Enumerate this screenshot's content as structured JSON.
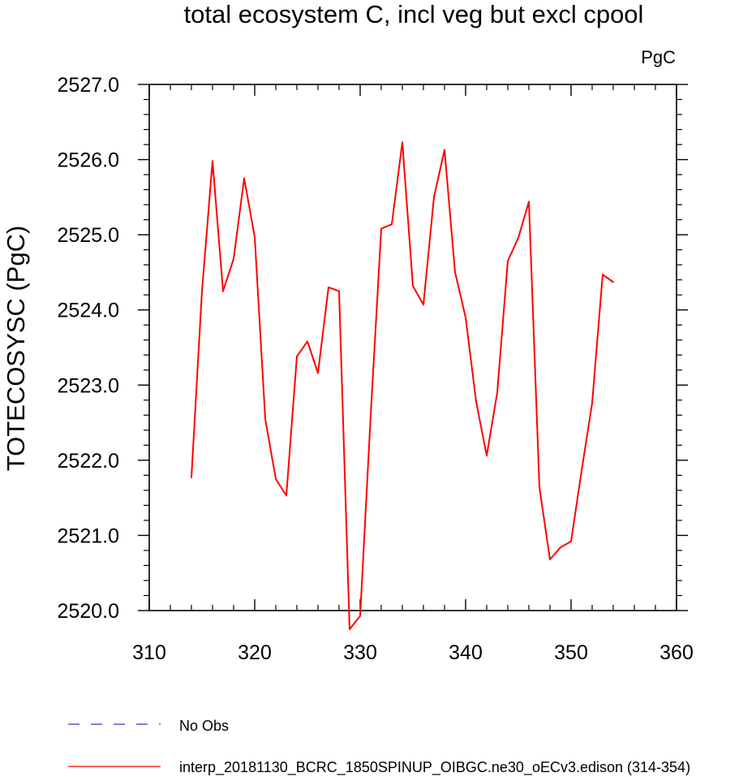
{
  "chart_data": {
    "type": "line",
    "title": "total ecosystem C, incl veg but excl cpool",
    "units_label": "PgC",
    "xlabel": "",
    "ylabel": "TOTECOSYSC  (PgC)",
    "xlim": [
      310,
      360
    ],
    "ylim": [
      2520,
      2527
    ],
    "xticks": [
      310,
      320,
      330,
      340,
      350,
      360
    ],
    "yticks": [
      2520,
      2521,
      2522,
      2523,
      2524,
      2525,
      2526,
      2527
    ],
    "xtick_labels": [
      "310",
      "320",
      "330",
      "340",
      "350",
      "360"
    ],
    "ytick_labels": [
      "2520.0",
      "2521.0",
      "2522.0",
      "2523.0",
      "2524.0",
      "2525.0",
      "2526.0",
      "2527.0"
    ],
    "grid": false,
    "series": [
      {
        "name": "interp_20181130_BCRC_1850SPINUP_OIBGC.ne30_oECv3.edison (314-354)",
        "color": "#ff0000",
        "dash": "solid",
        "x": [
          314,
          315,
          316,
          317,
          318,
          319,
          320,
          321,
          322,
          323,
          324,
          325,
          326,
          327,
          328,
          329,
          330,
          331,
          332,
          333,
          334,
          335,
          336,
          337,
          338,
          339,
          340,
          341,
          342,
          343,
          344,
          345,
          346,
          347,
          348,
          349,
          350,
          351,
          352,
          353,
          354
        ],
        "y": [
          2521.77,
          2524.25,
          2525.98,
          2524.25,
          2524.68,
          2525.75,
          2524.97,
          2522.55,
          2521.75,
          2521.53,
          2523.38,
          2523.58,
          2523.16,
          2524.3,
          2524.25,
          2519.75,
          2519.93,
          2522.6,
          2525.08,
          2525.14,
          2526.23,
          2524.32,
          2524.07,
          2525.5,
          2526.13,
          2524.5,
          2523.9,
          2522.78,
          2522.06,
          2522.9,
          2524.65,
          2524.96,
          2525.44,
          2521.64,
          2520.68,
          2520.84,
          2520.92,
          2521.86,
          2522.76,
          2524.47,
          2524.37
        ]
      },
      {
        "name": "No Obs",
        "color": "#3333cc",
        "dash": "dashed",
        "x": [],
        "y": []
      }
    ],
    "legend_position": "bottom"
  }
}
